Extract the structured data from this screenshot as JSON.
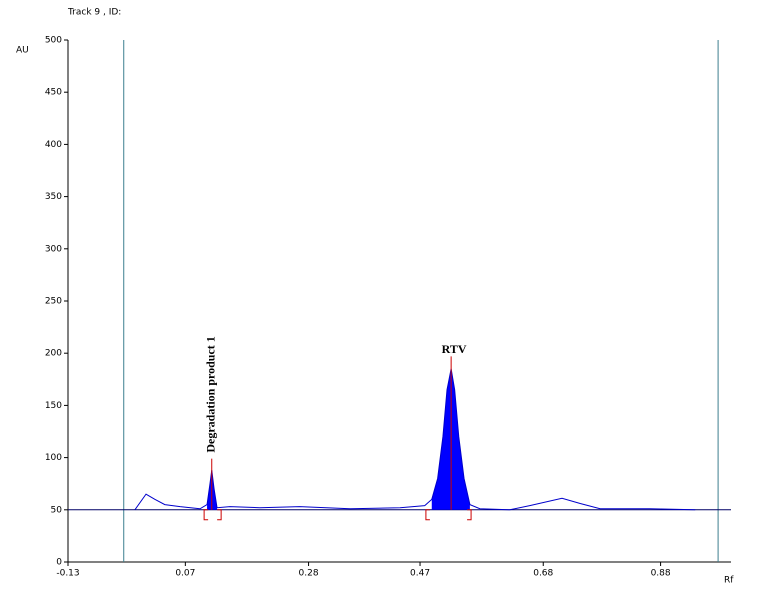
{
  "chart_data": {
    "type": "line",
    "title": "Track  9 , ID:",
    "y_label": "AU",
    "x_label": "Rf",
    "xlim": [
      -0.13,
      1.0
    ],
    "xticks": [
      -0.13,
      0.07,
      0.28,
      0.47,
      0.68,
      0.88
    ],
    "ylim": [
      0,
      500
    ],
    "yticks": [
      0,
      50,
      100,
      150,
      200,
      250,
      300,
      350,
      400,
      450,
      500
    ],
    "baseline": 50,
    "front_lines": [
      -0.035,
      0.978
    ],
    "series": [
      {
        "color": "#0000cc",
        "x": [
          -0.016,
          0.003,
          0.018,
          0.035,
          0.061,
          0.095,
          0.107,
          0.112,
          0.115,
          0.119,
          0.124,
          0.146,
          0.197,
          0.265,
          0.351,
          0.436,
          0.478,
          0.49,
          0.5,
          0.509,
          0.516,
          0.523,
          0.529,
          0.536,
          0.545,
          0.555,
          0.572,
          0.623,
          0.657,
          0.712,
          0.743,
          0.777,
          0.862,
          0.939
        ],
        "values": [
          50,
          65,
          60,
          55,
          53,
          51,
          55,
          75,
          88,
          70,
          52,
          53,
          52,
          53,
          51,
          52,
          54,
          60,
          80,
          120,
          165,
          185,
          165,
          120,
          80,
          55,
          51,
          50,
          54,
          61,
          56,
          51,
          51,
          50
        ]
      }
    ],
    "peaks": [
      {
        "label": "Degradation product 1",
        "apex": 0.115,
        "height": 99,
        "start": 0.102,
        "end": 0.131
      },
      {
        "label": "RTV",
        "apex": 0.523,
        "height": 197,
        "start": 0.48,
        "end": 0.557
      }
    ]
  }
}
